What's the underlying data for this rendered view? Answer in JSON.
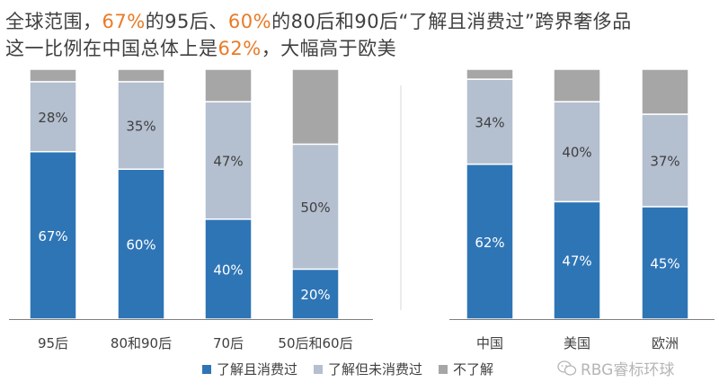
{
  "title": {
    "line1": {
      "p1": "全球范围，",
      "h1": "67%",
      "p2": "的95后、",
      "h2": "60%",
      "p3": "的80后和90后“了解且消费过”跨界奢侈品"
    },
    "line2": {
      "p1": "这一比例在中国总体上是",
      "h1": "62%",
      "p2": "，大幅高于欧美"
    }
  },
  "colors": {
    "consumed": "#2E75B6",
    "aware": "#B4BFD0",
    "unaware": "#A6A6A6",
    "highlight": "#E97B27"
  },
  "chart_data": [
    {
      "type": "bar",
      "stacked": true,
      "categories": [
        "95后",
        "80和90后",
        "70后",
        "50后和60后"
      ],
      "series": [
        {
          "name": "了解且消费过",
          "values": [
            67,
            60,
            40,
            20
          ]
        },
        {
          "name": "了解但未消费过",
          "values": [
            28,
            35,
            47,
            50
          ]
        },
        {
          "name": "不了解",
          "values": [
            5,
            5,
            13,
            30
          ]
        }
      ],
      "ylim": [
        0,
        100
      ]
    },
    {
      "type": "bar",
      "stacked": true,
      "categories": [
        "中国",
        "美国",
        "欧洲"
      ],
      "series": [
        {
          "name": "了解且消费过",
          "values": [
            62,
            47,
            45
          ]
        },
        {
          "name": "了解但未消费过",
          "values": [
            34,
            40,
            37
          ]
        },
        {
          "name": "不了解",
          "values": [
            4,
            13,
            18
          ]
        }
      ],
      "ylim": [
        0,
        100
      ]
    }
  ],
  "labels": [
    [
      "67%",
      "28%",
      ""
    ],
    [
      "60%",
      "35%",
      ""
    ],
    [
      "40%",
      "47%",
      ""
    ],
    [
      "20%",
      "50%",
      ""
    ],
    [
      "62%",
      "34%",
      ""
    ],
    [
      "47%",
      "40%",
      ""
    ],
    [
      "45%",
      "37%",
      ""
    ]
  ],
  "legend": [
    "了解且消费过",
    "了解但未消费过",
    "不了解"
  ],
  "watermark": "RBG睿标环球"
}
